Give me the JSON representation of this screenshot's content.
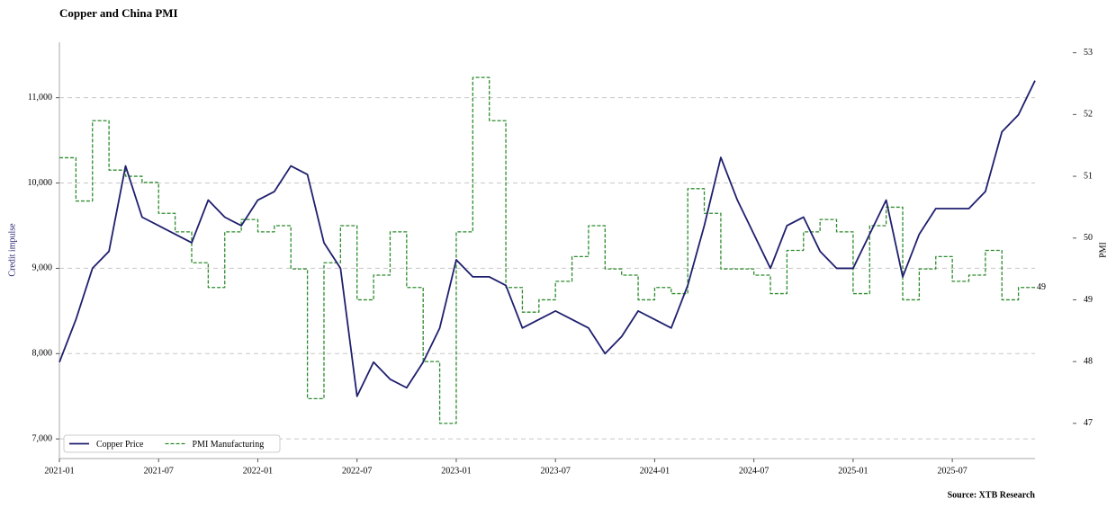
{
  "chart_data": {
    "type": "line",
    "title": "Copper and China PMI",
    "source": "Source: XTB Research",
    "ylabel": "Credit impulse",
    "y2label": "PMI",
    "legend": "lower left",
    "grid": true,
    "x": [
      "2021-01",
      "2021-02",
      "2021-03",
      "2021-04",
      "2021-05",
      "2021-06",
      "2021-07",
      "2021-08",
      "2021-09",
      "2021-10",
      "2021-11",
      "2021-12",
      "2022-01",
      "2022-02",
      "2022-03",
      "2022-04",
      "2022-05",
      "2022-06",
      "2022-07",
      "2022-08",
      "2022-09",
      "2022-10",
      "2022-11",
      "2022-12",
      "2023-01",
      "2023-02",
      "2023-03",
      "2023-04",
      "2023-05",
      "2023-06",
      "2023-07",
      "2023-08",
      "2023-09",
      "2023-10",
      "2023-11",
      "2023-12",
      "2024-01",
      "2024-02",
      "2024-03",
      "2024-04",
      "2024-05",
      "2024-06",
      "2024-07",
      "2024-08",
      "2024-09",
      "2024-10",
      "2024-11",
      "2024-12",
      "2025-01",
      "2025-02",
      "2025-03",
      "2025-04",
      "2025-05",
      "2025-06",
      "2025-07",
      "2025-08",
      "2025-09",
      "2025-10",
      "2025-11",
      "2025-12"
    ],
    "xlim": [
      "2021-01",
      "2025-12"
    ],
    "xticks": [
      "2021-01",
      "2021-07",
      "2022-01",
      "2022-07",
      "2023-01",
      "2023-07",
      "2024-01",
      "2024-07",
      "2025-01",
      "2025-07"
    ],
    "ylim": [
      6770,
      11650
    ],
    "yticks": [
      {
        "value": 7000,
        "label": "7,000"
      },
      {
        "value": 8000,
        "label": "8,000"
      },
      {
        "value": 9000,
        "label": "9,000"
      },
      {
        "value": 10000,
        "label": "10,000"
      },
      {
        "value": 11000,
        "label": "11,000"
      }
    ],
    "y2lim": [
      46.43,
      53.17
    ],
    "y2ticks": [
      47,
      48,
      49,
      50,
      51,
      52,
      53
    ],
    "series": [
      {
        "name": "Copper Price",
        "color": "#1f1f6e",
        "style": "solid",
        "values": [
          7900,
          8400,
          9000,
          9200,
          10200,
          9600,
          9500,
          9400,
          9300,
          9800,
          9600,
          9500,
          9800,
          9900,
          10200,
          10100,
          9300,
          9000,
          7500,
          7900,
          7700,
          7600,
          7900,
          8300,
          9100,
          8900,
          8900,
          8800,
          8300,
          8400,
          8500,
          8400,
          8300,
          8000,
          8200,
          8500,
          8400,
          8300,
          8800,
          9500,
          10300,
          9800,
          9400,
          9000,
          9500,
          9600,
          9200,
          9000,
          9000,
          9400,
          9800,
          8900,
          9400,
          9700,
          9700,
          9700,
          9900,
          10600,
          10800,
          11200
        ]
      },
      {
        "name": "PMI Manufacturing",
        "color": "#2e8b2e",
        "style": "dashed",
        "axis": "y2",
        "step": true,
        "values": [
          51.3,
          50.6,
          51.9,
          51.1,
          51.0,
          50.9,
          50.4,
          50.1,
          49.6,
          49.2,
          50.1,
          50.3,
          50.1,
          50.2,
          49.5,
          47.4,
          49.6,
          50.2,
          49.0,
          49.4,
          50.1,
          49.2,
          48.0,
          47.0,
          50.1,
          52.6,
          51.9,
          49.2,
          48.8,
          49.0,
          49.3,
          49.7,
          50.2,
          49.5,
          49.4,
          49.0,
          49.2,
          49.1,
          50.8,
          50.4,
          49.5,
          49.5,
          49.4,
          49.1,
          49.8,
          50.1,
          50.3,
          50.1,
          49.1,
          50.2,
          50.5,
          49.0,
          49.5,
          49.7,
          49.3,
          49.4,
          49.8,
          49.0,
          49.2,
          49.2
        ],
        "value_labels": [
          null,
          null,
          null,
          null,
          null,
          null,
          null,
          null,
          null,
          null,
          null,
          null,
          null,
          null,
          null,
          null,
          null,
          null,
          null,
          null,
          null,
          null,
          null,
          null,
          null,
          null,
          null,
          null,
          null,
          null,
          null,
          null,
          null,
          null,
          null,
          null,
          null,
          null,
          null,
          null,
          null,
          null,
          null,
          null,
          null,
          null,
          null,
          null,
          null,
          null,
          null,
          null,
          null,
          null,
          null,
          null,
          null,
          null,
          null,
          "49"
        ]
      }
    ]
  }
}
